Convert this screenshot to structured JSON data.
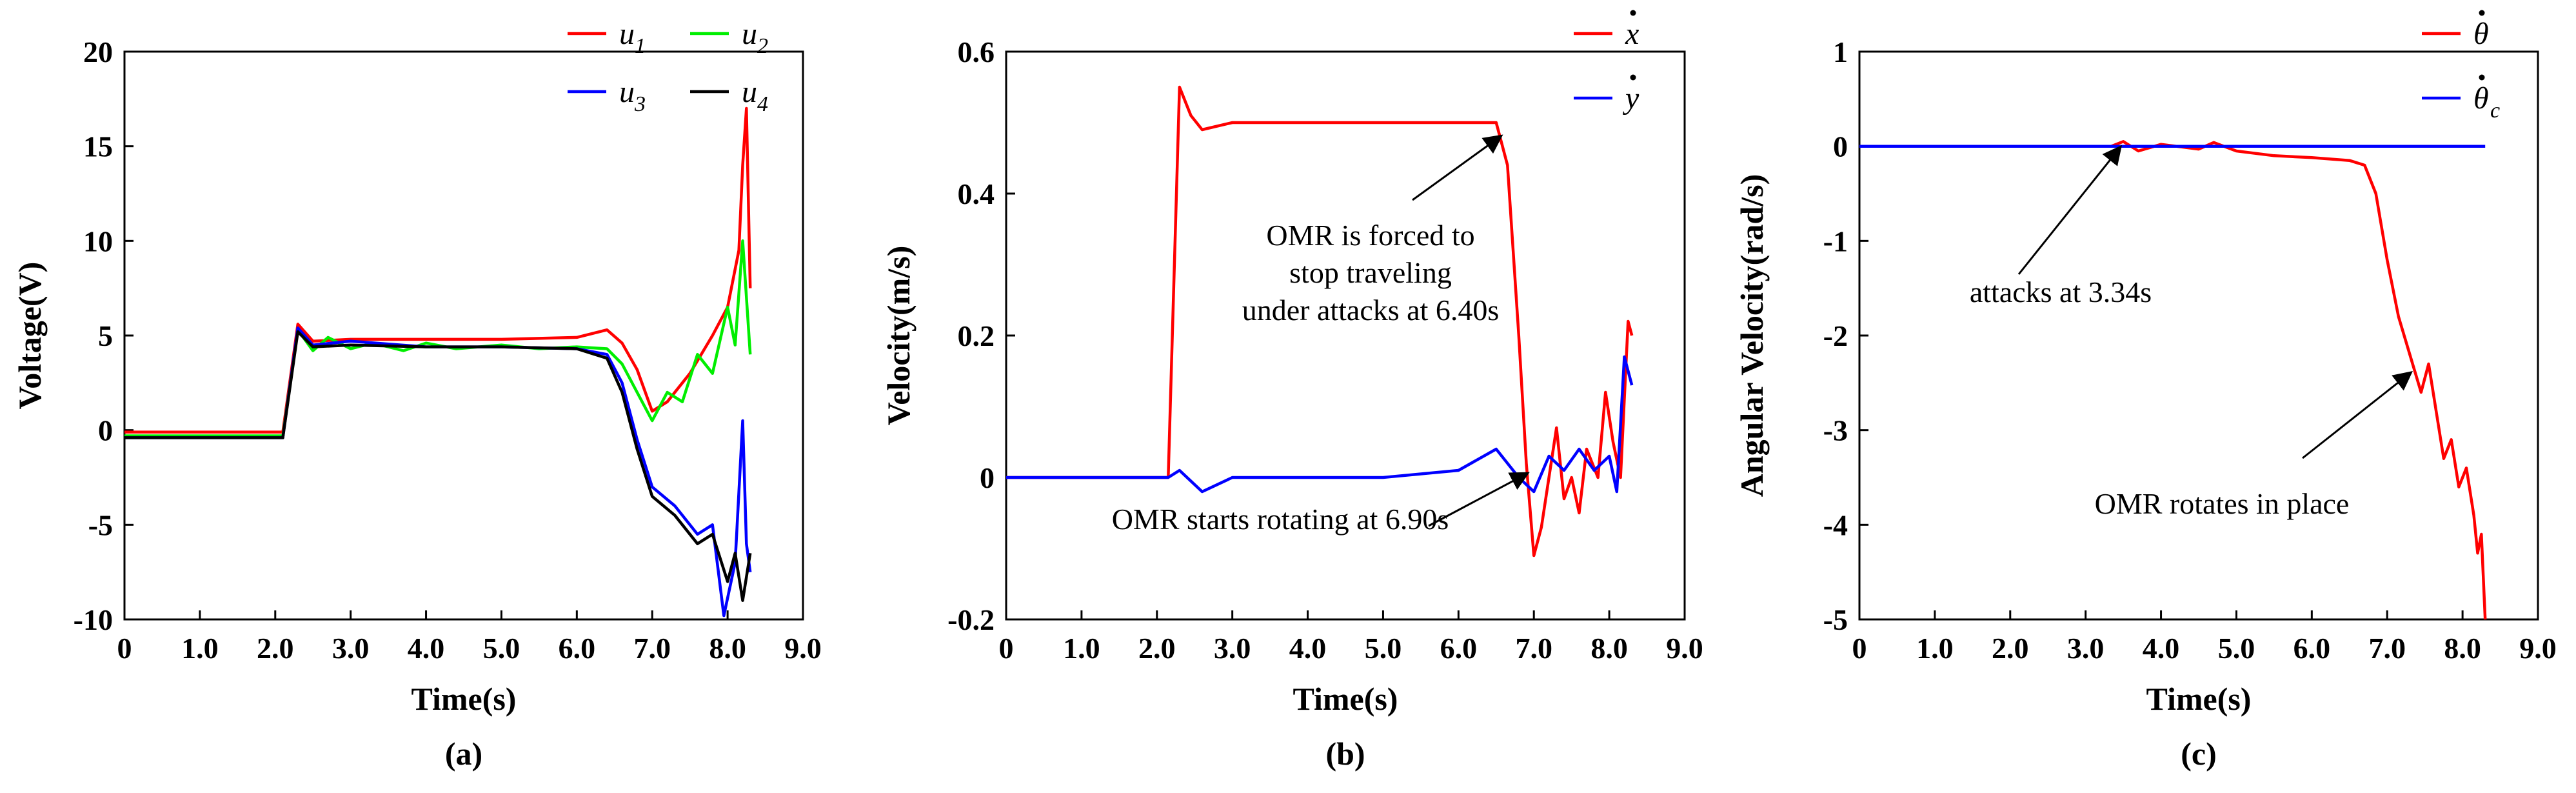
{
  "chart_data": [
    {
      "type": "line",
      "caption": "(a)",
      "xlabel": "Time(s)",
      "ylabel": "Voltage(V)",
      "xlim": [
        0,
        9
      ],
      "ylim": [
        -10,
        20
      ],
      "xticks": [
        0,
        1,
        2,
        3,
        4,
        5,
        6,
        7,
        8,
        9
      ],
      "xtick_labels": [
        "0",
        "1.0",
        "2.0",
        "3.0",
        "4.0",
        "5.0",
        "6.0",
        "7.0",
        "8.0",
        "9.0"
      ],
      "yticks": [
        -10,
        -5,
        0,
        5,
        10,
        15,
        20
      ],
      "ytick_labels": [
        "-10",
        "-5",
        "0",
        "5",
        "10",
        "15",
        "20"
      ],
      "legend_position": "top-right",
      "series": [
        {
          "name": "u1",
          "sub": "1",
          "color": "#ff0000",
          "points": [
            [
              0,
              -0.1
            ],
            [
              2.1,
              -0.1
            ],
            [
              2.3,
              5.6
            ],
            [
              2.5,
              4.7
            ],
            [
              3,
              4.8
            ],
            [
              4,
              4.8
            ],
            [
              5,
              4.8
            ],
            [
              6,
              4.9
            ],
            [
              6.4,
              5.3
            ],
            [
              6.6,
              4.6
            ],
            [
              6.8,
              3.2
            ],
            [
              7,
              1.0
            ],
            [
              7.2,
              1.5
            ],
            [
              7.5,
              3.0
            ],
            [
              7.8,
              5.0
            ],
            [
              8,
              6.5
            ],
            [
              8.15,
              9.5
            ],
            [
              8.2,
              14.0
            ],
            [
              8.25,
              17.0
            ],
            [
              8.3,
              7.5
            ]
          ]
        },
        {
          "name": "u2",
          "sub": "2",
          "color": "#00ee00",
          "points": [
            [
              0,
              -0.3
            ],
            [
              2.1,
              -0.3
            ],
            [
              2.3,
              5.3
            ],
            [
              2.5,
              4.2
            ],
            [
              2.7,
              4.9
            ],
            [
              3,
              4.3
            ],
            [
              3.3,
              4.6
            ],
            [
              3.7,
              4.2
            ],
            [
              4,
              4.6
            ],
            [
              4.4,
              4.3
            ],
            [
              5,
              4.5
            ],
            [
              5.5,
              4.3
            ],
            [
              6,
              4.4
            ],
            [
              6.4,
              4.3
            ],
            [
              6.6,
              3.5
            ],
            [
              6.8,
              2.0
            ],
            [
              7,
              0.5
            ],
            [
              7.2,
              2.0
            ],
            [
              7.4,
              1.5
            ],
            [
              7.6,
              4.0
            ],
            [
              7.8,
              3.0
            ],
            [
              8,
              6.5
            ],
            [
              8.1,
              4.5
            ],
            [
              8.2,
              10.0
            ],
            [
              8.3,
              4.0
            ]
          ]
        },
        {
          "name": "u3",
          "sub": "3",
          "color": "#0000ff",
          "points": [
            [
              0,
              -0.4
            ],
            [
              2.1,
              -0.4
            ],
            [
              2.3,
              5.4
            ],
            [
              2.5,
              4.5
            ],
            [
              3,
              4.7
            ],
            [
              4,
              4.4
            ],
            [
              5,
              4.4
            ],
            [
              6,
              4.3
            ],
            [
              6.4,
              4.0
            ],
            [
              6.6,
              2.5
            ],
            [
              6.8,
              -0.5
            ],
            [
              7,
              -3.0
            ],
            [
              7.3,
              -4.0
            ],
            [
              7.6,
              -5.5
            ],
            [
              7.8,
              -5.0
            ],
            [
              7.95,
              -9.8
            ],
            [
              8.1,
              -7.0
            ],
            [
              8.2,
              0.5
            ],
            [
              8.25,
              -6.0
            ],
            [
              8.3,
              -7.5
            ]
          ]
        },
        {
          "name": "u4",
          "sub": "4",
          "color": "#000000",
          "points": [
            [
              0,
              -0.4
            ],
            [
              2.1,
              -0.4
            ],
            [
              2.3,
              5.2
            ],
            [
              2.5,
              4.4
            ],
            [
              3,
              4.5
            ],
            [
              4,
              4.4
            ],
            [
              5,
              4.4
            ],
            [
              6,
              4.3
            ],
            [
              6.4,
              3.8
            ],
            [
              6.6,
              2.0
            ],
            [
              6.8,
              -1.0
            ],
            [
              7,
              -3.5
            ],
            [
              7.3,
              -4.5
            ],
            [
              7.6,
              -6.0
            ],
            [
              7.8,
              -5.5
            ],
            [
              8,
              -8.0
            ],
            [
              8.1,
              -6.5
            ],
            [
              8.2,
              -9.0
            ],
            [
              8.3,
              -6.5
            ]
          ]
        }
      ]
    },
    {
      "type": "line",
      "caption": "(b)",
      "xlabel": "Time(s)",
      "ylabel": "Velocity(m/s)",
      "xlim": [
        0,
        9
      ],
      "ylim": [
        -0.2,
        0.6
      ],
      "xticks": [
        0,
        1,
        2,
        3,
        4,
        5,
        6,
        7,
        8,
        9
      ],
      "xtick_labels": [
        "0",
        "1.0",
        "2.0",
        "3.0",
        "4.0",
        "5.0",
        "6.0",
        "7.0",
        "8.0",
        "9.0"
      ],
      "yticks": [
        -0.2,
        0,
        0.2,
        0.4,
        0.6
      ],
      "ytick_labels": [
        "-0.2",
        "0",
        "0.2",
        "0.4",
        "0.6"
      ],
      "legend_position": "top-right",
      "series": [
        {
          "name": "x",
          "color": "#ff0000",
          "points": [
            [
              0,
              0
            ],
            [
              2.15,
              0
            ],
            [
              2.3,
              0.55
            ],
            [
              2.45,
              0.51
            ],
            [
              2.6,
              0.49
            ],
            [
              3,
              0.5
            ],
            [
              4,
              0.5
            ],
            [
              5,
              0.5
            ],
            [
              6,
              0.5
            ],
            [
              6.5,
              0.5
            ],
            [
              6.65,
              0.44
            ],
            [
              6.8,
              0.2
            ],
            [
              6.9,
              0.02
            ],
            [
              7,
              -0.11
            ],
            [
              7.1,
              -0.07
            ],
            [
              7.2,
              0.0
            ],
            [
              7.3,
              0.07
            ],
            [
              7.4,
              -0.03
            ],
            [
              7.5,
              0.0
            ],
            [
              7.6,
              -0.05
            ],
            [
              7.7,
              0.04
            ],
            [
              7.85,
              0.0
            ],
            [
              7.95,
              0.12
            ],
            [
              8.05,
              0.05
            ],
            [
              8.15,
              0.0
            ],
            [
              8.25,
              0.22
            ],
            [
              8.3,
              0.2
            ]
          ]
        },
        {
          "name": "y",
          "color": "#0000ff",
          "points": [
            [
              0,
              0
            ],
            [
              2.15,
              0
            ],
            [
              2.3,
              0.01
            ],
            [
              2.6,
              -0.02
            ],
            [
              3,
              0.0
            ],
            [
              4,
              0.0
            ],
            [
              5,
              0.0
            ],
            [
              6,
              0.01
            ],
            [
              6.5,
              0.04
            ],
            [
              6.8,
              0.0
            ],
            [
              7,
              -0.02
            ],
            [
              7.2,
              0.03
            ],
            [
              7.4,
              0.01
            ],
            [
              7.6,
              0.04
            ],
            [
              7.8,
              0.01
            ],
            [
              8,
              0.03
            ],
            [
              8.1,
              -0.02
            ],
            [
              8.2,
              0.17
            ],
            [
              8.3,
              0.13
            ]
          ]
        }
      ],
      "annotations": [
        {
          "lines": [
            "OMR is forced to",
            "stop traveling",
            "under attacks at 6.40s"
          ],
          "target": [
            6.55,
            0.48
          ]
        },
        {
          "lines": [
            "OMR starts rotating at 6.90s"
          ],
          "target": [
            6.9,
            0.005
          ]
        }
      ]
    },
    {
      "type": "line",
      "caption": "(c)",
      "xlabel": "Time(s)",
      "ylabel": "Angular Velocity(rad/s)",
      "xlim": [
        0,
        9
      ],
      "ylim": [
        -5,
        1
      ],
      "xticks": [
        0,
        1,
        2,
        3,
        4,
        5,
        6,
        7,
        8,
        9
      ],
      "xtick_labels": [
        "0",
        "1.0",
        "2.0",
        "3.0",
        "4.0",
        "5.0",
        "6.0",
        "7.0",
        "8.0",
        "9.0"
      ],
      "yticks": [
        -5,
        -4,
        -3,
        -2,
        -1,
        0,
        1
      ],
      "ytick_labels": [
        "-5",
        "-4",
        "-3",
        "-2",
        "-1",
        "0",
        "1"
      ],
      "legend_position": "top-right",
      "series": [
        {
          "name": "theta",
          "color": "#ff0000",
          "points": [
            [
              0,
              0
            ],
            [
              3.34,
              0
            ],
            [
              3.5,
              0.05
            ],
            [
              3.7,
              -0.05
            ],
            [
              4.0,
              0.02
            ],
            [
              4.5,
              -0.03
            ],
            [
              4.7,
              0.04
            ],
            [
              5,
              -0.05
            ],
            [
              5.5,
              -0.1
            ],
            [
              6,
              -0.12
            ],
            [
              6.5,
              -0.15
            ],
            [
              6.7,
              -0.2
            ],
            [
              6.85,
              -0.5
            ],
            [
              7,
              -1.2
            ],
            [
              7.15,
              -1.8
            ],
            [
              7.3,
              -2.2
            ],
            [
              7.45,
              -2.6
            ],
            [
              7.55,
              -2.3
            ],
            [
              7.65,
              -2.8
            ],
            [
              7.75,
              -3.3
            ],
            [
              7.85,
              -3.1
            ],
            [
              7.95,
              -3.6
            ],
            [
              8.05,
              -3.4
            ],
            [
              8.15,
              -3.9
            ],
            [
              8.2,
              -4.3
            ],
            [
              8.25,
              -4.1
            ],
            [
              8.3,
              -5.0
            ]
          ]
        },
        {
          "name": "theta_c",
          "sub": "c",
          "color": "#0000ff",
          "points": [
            [
              0,
              0
            ],
            [
              8.3,
              0
            ]
          ]
        }
      ],
      "annotations": [
        {
          "lines": [
            "attacks at 3.34s"
          ],
          "target": [
            3.45,
            -0.02
          ]
        },
        {
          "lines": [
            "OMR rotates in place"
          ],
          "target": [
            7.3,
            -2.4
          ]
        }
      ]
    }
  ]
}
